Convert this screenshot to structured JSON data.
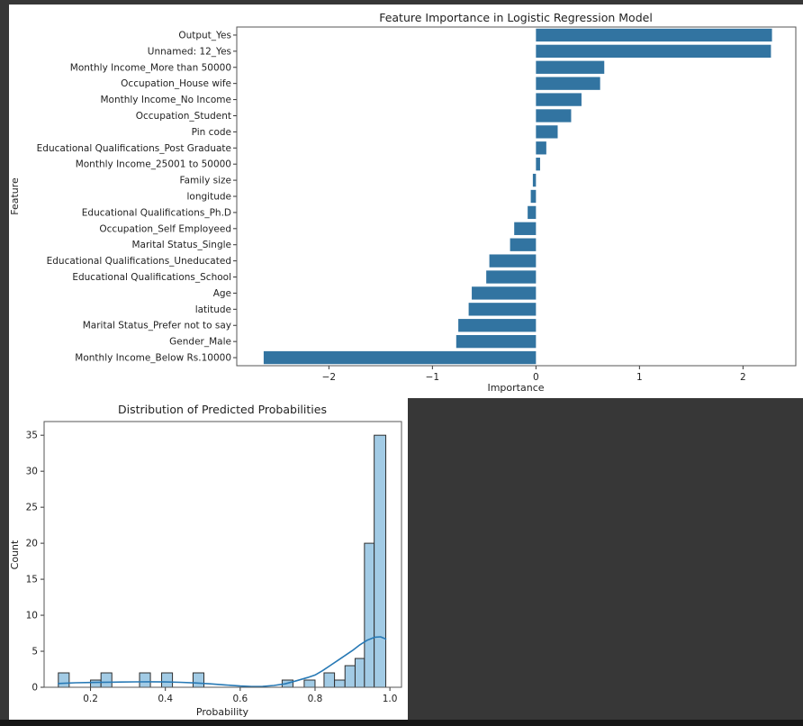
{
  "page": {
    "background_color": "#373737",
    "canvas_color": "#ffffff",
    "bottom_strip_color": "#161616"
  },
  "chart_data": [
    {
      "type": "bar",
      "orientation": "horizontal",
      "title": "Feature Importance in Logistic Regression Model",
      "xlabel": "Importance",
      "ylabel": "Feature",
      "xlim": [
        -2.89,
        2.51
      ],
      "xticks": [
        -2,
        -1,
        0,
        1,
        2
      ],
      "grid": false,
      "bar_color": "#3274a1",
      "categories": [
        "Output_Yes",
        "Unnamed: 12_Yes",
        "Monthly Income_More than 50000",
        "Occupation_House wife",
        "Monthly Income_No Income",
        "Occupation_Student",
        "Pin code",
        "Educational Qualifications_Post Graduate",
        "Monthly Income_25001 to 50000",
        "Family size",
        "longitude",
        "Educational Qualifications_Ph.D",
        "Occupation_Self Employeed",
        "Marital Status_Single",
        "Educational Qualifications_Uneducated",
        "Educational Qualifications_School",
        "Age",
        "latitude",
        "Marital Status_Prefer not to say",
        "Gender_Male",
        "Monthly Income_Below Rs.10000"
      ],
      "values": [
        2.28,
        2.27,
        0.66,
        0.62,
        0.44,
        0.34,
        0.21,
        0.1,
        0.04,
        -0.03,
        -0.05,
        -0.08,
        -0.21,
        -0.25,
        -0.45,
        -0.48,
        -0.62,
        -0.65,
        -0.75,
        -0.77,
        -2.63
      ]
    },
    {
      "type": "histogram",
      "title": "Distribution of Predicted Probabilities",
      "xlabel": "Probability",
      "ylabel": "Count",
      "xlim": [
        0.076,
        1.031
      ],
      "ylim": [
        0,
        36.9
      ],
      "xticks": [
        0.2,
        0.4,
        0.6,
        0.8,
        1.0
      ],
      "yticks": [
        0,
        5,
        10,
        15,
        20,
        25,
        30,
        35
      ],
      "grid": false,
      "bar_fill": "#a2cbe5",
      "bar_edge": "#2e2e2e",
      "kde_color": "#2779b5",
      "bins": [
        {
          "x0": 0.114,
          "x1": 0.143,
          "count": 2
        },
        {
          "x0": 0.2,
          "x1": 0.228,
          "count": 1
        },
        {
          "x0": 0.228,
          "x1": 0.257,
          "count": 2
        },
        {
          "x0": 0.331,
          "x1": 0.36,
          "count": 2
        },
        {
          "x0": 0.39,
          "x1": 0.419,
          "count": 2
        },
        {
          "x0": 0.474,
          "x1": 0.503,
          "count": 2
        },
        {
          "x0": 0.712,
          "x1": 0.741,
          "count": 1
        },
        {
          "x0": 0.771,
          "x1": 0.8,
          "count": 1
        },
        {
          "x0": 0.824,
          "x1": 0.852,
          "count": 2
        },
        {
          "x0": 0.852,
          "x1": 0.88,
          "count": 1
        },
        {
          "x0": 0.88,
          "x1": 0.907,
          "count": 3
        },
        {
          "x0": 0.907,
          "x1": 0.932,
          "count": 4
        },
        {
          "x0": 0.932,
          "x1": 0.958,
          "count": 20
        },
        {
          "x0": 0.958,
          "x1": 0.989,
          "count": 35
        }
      ],
      "kde_curve": [
        [
          0.114,
          0.52
        ],
        [
          0.16,
          0.62
        ],
        [
          0.2,
          0.66
        ],
        [
          0.24,
          0.7
        ],
        [
          0.28,
          0.73
        ],
        [
          0.32,
          0.75
        ],
        [
          0.36,
          0.76
        ],
        [
          0.4,
          0.74
        ],
        [
          0.44,
          0.69
        ],
        [
          0.48,
          0.6
        ],
        [
          0.52,
          0.47
        ],
        [
          0.56,
          0.32
        ],
        [
          0.6,
          0.18
        ],
        [
          0.63,
          0.1
        ],
        [
          0.66,
          0.12
        ],
        [
          0.69,
          0.25
        ],
        [
          0.72,
          0.48
        ],
        [
          0.75,
          0.9
        ],
        [
          0.78,
          1.35
        ],
        [
          0.8,
          1.7
        ],
        [
          0.82,
          2.3
        ],
        [
          0.84,
          3.0
        ],
        [
          0.86,
          3.7
        ],
        [
          0.88,
          4.4
        ],
        [
          0.9,
          5.1
        ],
        [
          0.92,
          5.9
        ],
        [
          0.94,
          6.55
        ],
        [
          0.96,
          6.95
        ],
        [
          0.975,
          7.0
        ],
        [
          0.989,
          6.7
        ]
      ]
    }
  ]
}
